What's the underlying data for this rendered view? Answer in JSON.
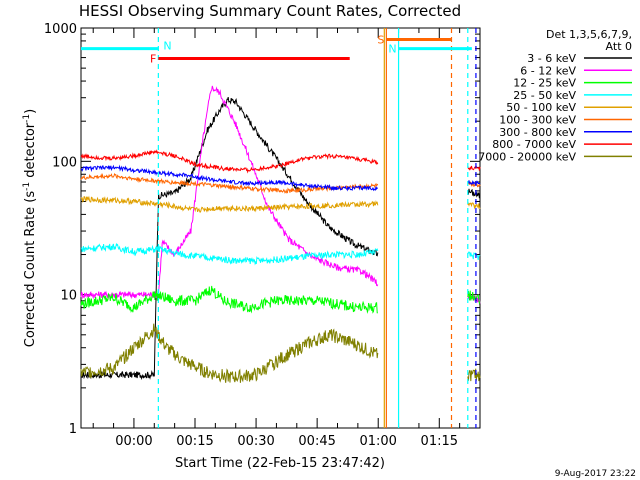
{
  "chart_data": {
    "type": "line",
    "title": "HESSI Observing Summary Count Rates, Corrected",
    "xlabel": "Start Time (22-Feb-15 23:47:42)",
    "ylabel_pre": "Corrected Count Rate (s",
    "ylabel_sup": "-1",
    "ylabel_post": " detector",
    "ylabel_end": ")",
    "y_scale": "log",
    "ylim": [
      1,
      1000
    ],
    "xlim_min": [
      -13,
      85
    ],
    "x_ticks": [
      {
        "m": 0,
        "label": "00:00"
      },
      {
        "m": 15,
        "label": "00:15"
      },
      {
        "m": 30,
        "label": "00:30"
      },
      {
        "m": 45,
        "label": "00:45"
      },
      {
        "m": 60,
        "label": "01:00"
      },
      {
        "m": 75,
        "label": "01:15"
      }
    ],
    "y_ticks": [
      {
        "v": 1,
        "label": "1"
      },
      {
        "v": 10,
        "label": "10"
      },
      {
        "v": 100,
        "label": "100"
      },
      {
        "v": 1000,
        "label": "1000"
      }
    ],
    "legend_header": [
      "Det 1,3,5,6,7,9,",
      "Att 0"
    ],
    "footer_date": "9-Aug-2017 23:22",
    "series": [
      {
        "name": "3 - 6 keV",
        "color": "#000000",
        "points": [
          [
            -13,
            2.5
          ],
          [
            5,
            2.5
          ],
          [
            6,
            55
          ],
          [
            10,
            58
          ],
          [
            14,
            75
          ],
          [
            18,
            170
          ],
          [
            21,
            240
          ],
          [
            23,
            290
          ],
          [
            25,
            280
          ],
          [
            30,
            170
          ],
          [
            36,
            95
          ],
          [
            42,
            52
          ],
          [
            48,
            32
          ],
          [
            54,
            24
          ],
          [
            60,
            20
          ]
        ],
        "after": [
          [
            82,
            60
          ],
          [
            85,
            55
          ]
        ]
      },
      {
        "name": "6 - 12 keV",
        "color": "#ff00ff",
        "points": [
          [
            -13,
            10
          ],
          [
            6,
            10
          ],
          [
            7,
            25
          ],
          [
            10,
            20
          ],
          [
            14,
            30
          ],
          [
            17,
            150
          ],
          [
            19,
            360
          ],
          [
            21,
            330
          ],
          [
            25,
            190
          ],
          [
            29,
            95
          ],
          [
            33,
            45
          ],
          [
            38,
            26
          ],
          [
            44,
            19
          ],
          [
            50,
            16
          ],
          [
            56,
            15
          ],
          [
            60,
            12
          ]
        ],
        "after": [
          [
            82,
            10
          ],
          [
            85,
            9
          ]
        ]
      },
      {
        "name": "12 - 25 keV",
        "color": "#00ff00",
        "points": [
          [
            -13,
            8.5
          ],
          [
            -5,
            9.5
          ],
          [
            0,
            8
          ],
          [
            5,
            10
          ],
          [
            10,
            9
          ],
          [
            15,
            9
          ],
          [
            19,
            11
          ],
          [
            22,
            9
          ],
          [
            28,
            8
          ],
          [
            35,
            9
          ],
          [
            45,
            9
          ],
          [
            55,
            8
          ],
          [
            60,
            8
          ]
        ],
        "after": [
          [
            82,
            10
          ],
          [
            85,
            9
          ]
        ]
      },
      {
        "name": "25 - 50 keV",
        "color": "#00ffff",
        "points": [
          [
            -13,
            22
          ],
          [
            -5,
            23
          ],
          [
            0,
            21
          ],
          [
            6,
            22
          ],
          [
            12,
            20
          ],
          [
            18,
            19
          ],
          [
            25,
            18
          ],
          [
            32,
            18
          ],
          [
            40,
            19
          ],
          [
            48,
            20
          ],
          [
            55,
            20
          ],
          [
            60,
            21
          ]
        ],
        "after": [
          [
            82,
            20
          ],
          [
            85,
            19
          ]
        ]
      },
      {
        "name": "50 - 100 keV",
        "color": "#e0a000",
        "points": [
          [
            -13,
            52
          ],
          [
            -5,
            51
          ],
          [
            0,
            50
          ],
          [
            8,
            47
          ],
          [
            15,
            43
          ],
          [
            22,
            45
          ],
          [
            28,
            44
          ],
          [
            35,
            45
          ],
          [
            42,
            46
          ],
          [
            50,
            47
          ],
          [
            60,
            48
          ]
        ],
        "after": [
          [
            82,
            48
          ],
          [
            85,
            46
          ]
        ]
      },
      {
        "name": "100 - 300 keV",
        "color": "#ff6600",
        "points": [
          [
            -13,
            75
          ],
          [
            -5,
            78
          ],
          [
            0,
            74
          ],
          [
            8,
            70
          ],
          [
            15,
            68
          ],
          [
            22,
            65
          ],
          [
            30,
            62
          ],
          [
            38,
            60
          ],
          [
            45,
            62
          ],
          [
            52,
            64
          ],
          [
            60,
            66
          ]
        ],
        "after": [
          [
            82,
            68
          ],
          [
            85,
            66
          ]
        ]
      },
      {
        "name": "300 - 800 keV",
        "color": "#0000ff",
        "points": [
          [
            -13,
            88
          ],
          [
            -5,
            90
          ],
          [
            0,
            86
          ],
          [
            6,
            82
          ],
          [
            14,
            78
          ],
          [
            20,
            72
          ],
          [
            28,
            68
          ],
          [
            35,
            70
          ],
          [
            42,
            66
          ],
          [
            50,
            63
          ],
          [
            60,
            63
          ]
        ],
        "after": [
          [
            82,
            70
          ],
          [
            85,
            68
          ]
        ]
      },
      {
        "name": "800 - 7000 keV",
        "color": "#ff0000",
        "points": [
          [
            -13,
            110
          ],
          [
            -6,
            105
          ],
          [
            0,
            110
          ],
          [
            5,
            118
          ],
          [
            10,
            110
          ],
          [
            15,
            95
          ],
          [
            22,
            88
          ],
          [
            28,
            86
          ],
          [
            35,
            92
          ],
          [
            42,
            105
          ],
          [
            48,
            110
          ],
          [
            54,
            105
          ],
          [
            60,
            98
          ]
        ],
        "after": [
          [
            82,
            90
          ],
          [
            85,
            88
          ]
        ]
      },
      {
        "name": "7000 - 20000 keV",
        "color": "#808000",
        "points": [
          [
            -13,
            2.6
          ],
          [
            -5,
            2.8
          ],
          [
            0,
            4
          ],
          [
            5,
            5.5
          ],
          [
            8,
            4
          ],
          [
            12,
            3.2
          ],
          [
            18,
            2.6
          ],
          [
            24,
            2.4
          ],
          [
            30,
            2.5
          ],
          [
            36,
            3.3
          ],
          [
            42,
            4.2
          ],
          [
            48,
            5
          ],
          [
            54,
            4.3
          ],
          [
            60,
            3.5
          ]
        ],
        "after": [
          [
            82,
            2.5
          ],
          [
            85,
            2.5
          ]
        ]
      }
    ],
    "vlines": [
      {
        "m": 6,
        "color": "#00ffff",
        "dashed": true
      },
      {
        "m": 61.5,
        "color": "#e0a000",
        "dashed": false
      },
      {
        "m": 62,
        "color": "#ff6600",
        "dashed": false
      },
      {
        "m": 65,
        "color": "#00ffff",
        "dashed": false
      },
      {
        "m": 78,
        "color": "#ff6600",
        "dashed": true
      },
      {
        "m": 82,
        "color": "#00ffff",
        "dashed": true
      },
      {
        "m": 84,
        "color": "#0000ff",
        "dashed": true
      }
    ],
    "interval_bars": [
      {
        "label": "N",
        "color": "#00ffff",
        "start": -13,
        "end": 6,
        "level": 700
      },
      {
        "label": "N",
        "color": "#00ffff",
        "start": 65,
        "end": 83,
        "level": 700
      },
      {
        "label": "F",
        "color": "#ff0000",
        "start": 6,
        "end": 53,
        "level": 590
      },
      {
        "label": "S",
        "color": "#ff6600",
        "start": 62,
        "end": 78,
        "level": 820
      }
    ]
  }
}
